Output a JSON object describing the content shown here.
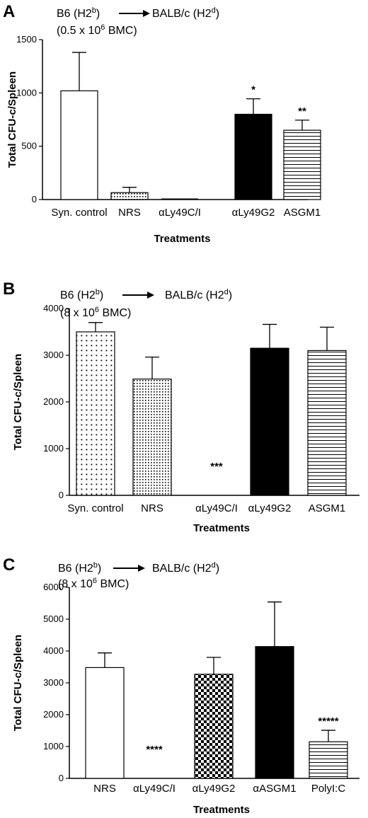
{
  "chart_data": [
    {
      "type": "bar",
      "panel_label": "A",
      "header": {
        "donor": "B6 (H2",
        "donor_sup": "b",
        "recipient": "BALB/c (H2",
        "recipient_sup": "d",
        "close": ")",
        "dose": "(0.5 x 10",
        "dose_sup": "6",
        "dose_tail": " BMC)"
      },
      "categories": [
        "Syn. control",
        "NRS",
        "αLy49C/I",
        "αLy49G2",
        "ASGM1"
      ],
      "values": [
        1020,
        65,
        5,
        800,
        650
      ],
      "errors": [
        360,
        50,
        0,
        145,
        95
      ],
      "fills": [
        "white",
        "dots-fine",
        "none",
        "black",
        "hlines"
      ],
      "significance": [
        "",
        "",
        "",
        "*",
        "**"
      ],
      "ylabel": "Total CFU-c/Spleen",
      "xlabel": "Treatments",
      "ylim": [
        0,
        1500
      ],
      "yticks": [
        0,
        500,
        1000,
        1500
      ]
    },
    {
      "type": "bar",
      "panel_label": "B",
      "header": {
        "donor": "B6 (H2",
        "donor_sup": "b",
        "recipient": "BALB/c (H2",
        "recipient_sup": "d",
        "close": ")",
        "dose": "(8 x 10",
        "dose_sup": "6",
        "dose_tail": " BMC)"
      },
      "categories": [
        "Syn. control",
        "NRS",
        "αLy49C/I",
        "αLy49G2",
        "ASGM1"
      ],
      "values": [
        3500,
        2490,
        0,
        3150,
        3100
      ],
      "errors": [
        200,
        470,
        0,
        510,
        500
      ],
      "fills": [
        "dots-sparse",
        "dots-fine",
        "none",
        "black",
        "hlines"
      ],
      "significance": [
        "",
        "",
        "***",
        "",
        ""
      ],
      "ylabel": "Total CFU-c/Spleen",
      "xlabel": "Treatments",
      "ylim": [
        0,
        4000
      ],
      "yticks": [
        0,
        1000,
        2000,
        3000,
        4000
      ]
    },
    {
      "type": "bar",
      "panel_label": "C",
      "header": {
        "donor": "B6 (H2",
        "donor_sup": "b",
        "recipient": "BALB/c (H2",
        "recipient_sup": "d",
        "close": ")",
        "dose": "(8 x 10",
        "dose_sup": "6",
        "dose_tail": " BMC)"
      },
      "categories": [
        "NRS",
        "αLy49C/I",
        "αLy49G2",
        "αASGM1",
        "PolyI:C"
      ],
      "values": [
        3480,
        0,
        3270,
        4140,
        1150
      ],
      "errors": [
        460,
        0,
        530,
        1400,
        360
      ],
      "fills": [
        "white",
        "none",
        "checker",
        "black",
        "hlines"
      ],
      "significance": [
        "",
        "****",
        "",
        "",
        "*****"
      ],
      "ylabel": "Total CFU-c/Spleen",
      "xlabel": "Treatments",
      "ylim": [
        0,
        6000
      ],
      "yticks": [
        0,
        1000,
        2000,
        3000,
        4000,
        5000,
        6000
      ]
    }
  ]
}
